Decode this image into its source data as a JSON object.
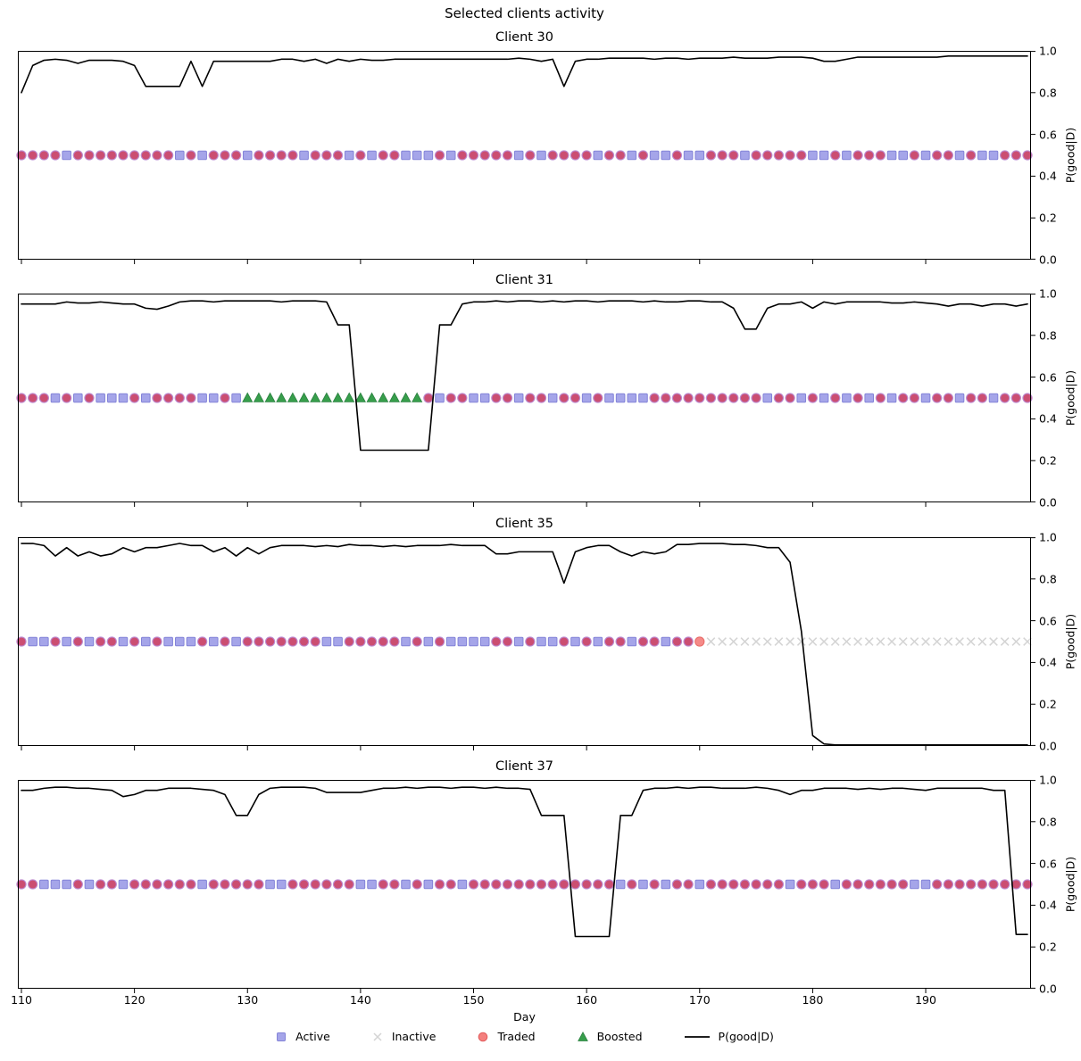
{
  "chart_data": {
    "type": "line",
    "suptitle": "Selected clients activity",
    "xlabel": "Day",
    "ylabel": "P(good|D)",
    "xlim": [
      110,
      200
    ],
    "ylim": [
      0.0,
      1.0
    ],
    "x_ticks": [
      110,
      120,
      130,
      140,
      150,
      160,
      170,
      180,
      190
    ],
    "y_ticks": [
      "1.0",
      "0.8",
      "0.6",
      "0.4",
      "0.2",
      "0.0"
    ],
    "y_tick_values": [
      1.0,
      0.8,
      0.6,
      0.4,
      0.2,
      0.0
    ],
    "day_start": 110,
    "marker_row_value": 0.5,
    "status_key": {
      "T": "Traded",
      "A": "Active",
      "I": "Inactive",
      "B": "Boosted",
      "L": "Traded"
    },
    "subplots": [
      {
        "title": "Client 30",
        "status": "TTTTATTTTTTTTTATATTTATTTTATTTATATTAAATATTTTTATATTTTATTATAATAATTTATTTTTAATATTTAATATTATAATTT",
        "p_good": [
          0.8,
          0.93,
          0.955,
          0.96,
          0.955,
          0.94,
          0.955,
          0.955,
          0.955,
          0.95,
          0.93,
          0.83,
          0.83,
          0.83,
          0.83,
          0.95,
          0.83,
          0.95,
          0.95,
          0.95,
          0.95,
          0.95,
          0.95,
          0.96,
          0.96,
          0.95,
          0.96,
          0.94,
          0.96,
          0.95,
          0.96,
          0.955,
          0.955,
          0.96,
          0.96,
          0.96,
          0.96,
          0.96,
          0.96,
          0.96,
          0.96,
          0.96,
          0.96,
          0.96,
          0.965,
          0.96,
          0.95,
          0.96,
          0.83,
          0.95,
          0.96,
          0.96,
          0.965,
          0.965,
          0.965,
          0.965,
          0.96,
          0.965,
          0.965,
          0.96,
          0.965,
          0.965,
          0.965,
          0.97,
          0.965,
          0.965,
          0.965,
          0.97,
          0.97,
          0.97,
          0.965,
          0.95,
          0.95,
          0.96,
          0.97,
          0.97,
          0.97,
          0.97,
          0.97,
          0.97,
          0.97,
          0.97,
          0.975,
          0.975,
          0.975,
          0.975,
          0.975,
          0.975,
          0.975,
          0.975
        ]
      },
      {
        "title": "Client 31",
        "status": "TTTATATAAATATTTTAATABBBBBBBBBBBBBBBBTATTAATTATTATTATAAAATTTTTTTTTTATTATATATATATTATTATTATTT",
        "p_good": [
          0.95,
          0.95,
          0.95,
          0.95,
          0.96,
          0.955,
          0.955,
          0.96,
          0.955,
          0.95,
          0.95,
          0.93,
          0.925,
          0.94,
          0.96,
          0.965,
          0.965,
          0.96,
          0.965,
          0.965,
          0.965,
          0.965,
          0.965,
          0.96,
          0.965,
          0.965,
          0.965,
          0.96,
          0.85,
          0.85,
          0.25,
          0.25,
          0.25,
          0.25,
          0.25,
          0.25,
          0.25,
          0.85,
          0.85,
          0.95,
          0.96,
          0.96,
          0.965,
          0.96,
          0.965,
          0.965,
          0.96,
          0.965,
          0.96,
          0.965,
          0.965,
          0.96,
          0.965,
          0.965,
          0.965,
          0.96,
          0.965,
          0.96,
          0.96,
          0.965,
          0.965,
          0.96,
          0.96,
          0.93,
          0.83,
          0.83,
          0.93,
          0.95,
          0.95,
          0.96,
          0.93,
          0.96,
          0.95,
          0.96,
          0.96,
          0.96,
          0.96,
          0.955,
          0.955,
          0.96,
          0.955,
          0.95,
          0.94,
          0.95,
          0.95,
          0.94,
          0.95,
          0.95,
          0.94,
          0.95
        ]
      },
      {
        "title": "Client 35",
        "status": "TAATATATTATATAAATATATTTTTTTAATTTTTATATAAAATTATAATATATTATTATTLIIIIIIIIIIIIIIIIIIIIIIIIIIIII",
        "p_good": [
          0.97,
          0.97,
          0.96,
          0.91,
          0.95,
          0.91,
          0.93,
          0.91,
          0.92,
          0.95,
          0.93,
          0.95,
          0.95,
          0.96,
          0.97,
          0.96,
          0.96,
          0.93,
          0.95,
          0.91,
          0.95,
          0.92,
          0.95,
          0.96,
          0.96,
          0.96,
          0.955,
          0.96,
          0.955,
          0.965,
          0.96,
          0.96,
          0.955,
          0.96,
          0.955,
          0.96,
          0.96,
          0.96,
          0.965,
          0.96,
          0.96,
          0.96,
          0.92,
          0.92,
          0.93,
          0.93,
          0.93,
          0.93,
          0.78,
          0.93,
          0.95,
          0.96,
          0.96,
          0.93,
          0.91,
          0.93,
          0.92,
          0.93,
          0.965,
          0.965,
          0.97,
          0.97,
          0.97,
          0.965,
          0.965,
          0.96,
          0.95,
          0.95,
          0.88,
          0.55,
          0.05,
          0.01,
          0.005,
          0.005,
          0.005,
          0.005,
          0.005,
          0.005,
          0.005,
          0.005,
          0.005,
          0.005,
          0.005,
          0.005,
          0.005,
          0.005,
          0.005,
          0.005,
          0.005,
          0.005
        ]
      },
      {
        "title": "Client 37",
        "status": "TTAAATATTATTTTTTATTTTTAATTTTTTAATTATATTATTTTTTTTTTTTTATATATTATTTTTTTATTTATTTTTTAATTTTTTTTT",
        "p_good": [
          0.95,
          0.95,
          0.96,
          0.965,
          0.965,
          0.96,
          0.96,
          0.955,
          0.95,
          0.92,
          0.93,
          0.95,
          0.95,
          0.96,
          0.96,
          0.96,
          0.955,
          0.95,
          0.93,
          0.83,
          0.83,
          0.93,
          0.96,
          0.965,
          0.965,
          0.965,
          0.96,
          0.94,
          0.94,
          0.94,
          0.94,
          0.95,
          0.96,
          0.96,
          0.965,
          0.96,
          0.965,
          0.965,
          0.96,
          0.965,
          0.965,
          0.96,
          0.965,
          0.96,
          0.96,
          0.955,
          0.83,
          0.83,
          0.83,
          0.25,
          0.25,
          0.25,
          0.25,
          0.83,
          0.83,
          0.95,
          0.96,
          0.96,
          0.965,
          0.96,
          0.965,
          0.965,
          0.96,
          0.96,
          0.96,
          0.965,
          0.96,
          0.95,
          0.93,
          0.95,
          0.95,
          0.96,
          0.96,
          0.96,
          0.955,
          0.96,
          0.955,
          0.96,
          0.96,
          0.955,
          0.95,
          0.96,
          0.96,
          0.96,
          0.96,
          0.96,
          0.95,
          0.95,
          0.26,
          0.26
        ]
      }
    ],
    "legend": [
      {
        "label": "Active",
        "marker": "square"
      },
      {
        "label": "Inactive",
        "marker": "x"
      },
      {
        "label": "Traded",
        "marker": "circle"
      },
      {
        "label": "Boosted",
        "marker": "triangle"
      },
      {
        "label": "P(good|D)",
        "marker": "line"
      }
    ]
  },
  "colors": {
    "active": "#a5a5e9",
    "active_edge": "#8383d8",
    "inactive": "#d4d4d4",
    "traded": "#cb4e72",
    "traded_edge": "#bc8ad0",
    "traded_light": "#f58a88",
    "traded_light_edge": "#e86a66",
    "traded_legend": "#f4807e",
    "traded_legend_edge": "#e25c5c",
    "boosted": "#379e4b",
    "boosted_edge": "#2a8040",
    "line": "#000000",
    "axis": "#000000"
  }
}
